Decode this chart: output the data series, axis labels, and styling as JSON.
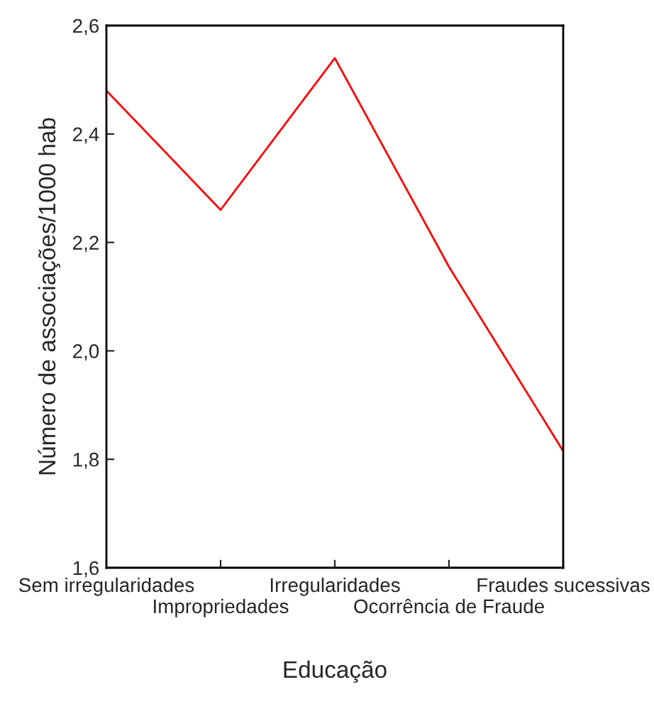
{
  "chart_data": {
    "type": "line",
    "xlabel": "Educação",
    "ylabel": "Número de associações/1000 hab",
    "categories": [
      "Sem irregularidades",
      "Impropriedades",
      "Irregularidades",
      "Ocorrência de Fraude",
      "Fraudes sucessivas"
    ],
    "series": [
      {
        "color": "#ff0000",
        "values": [
          2.48,
          2.26,
          2.54,
          2.155,
          1.815
        ]
      }
    ],
    "ylim": [
      1.6,
      2.6
    ],
    "yticks": [
      {
        "value": 1.6,
        "label": "1,6"
      },
      {
        "value": 1.8,
        "label": "1,8"
      },
      {
        "value": 2.0,
        "label": "2,0"
      },
      {
        "value": 2.2,
        "label": "2,2"
      },
      {
        "value": 2.4,
        "label": "2,4"
      },
      {
        "value": 2.6,
        "label": "2,6"
      }
    ],
    "grid": false,
    "marker": "none",
    "line_style": "solid"
  }
}
